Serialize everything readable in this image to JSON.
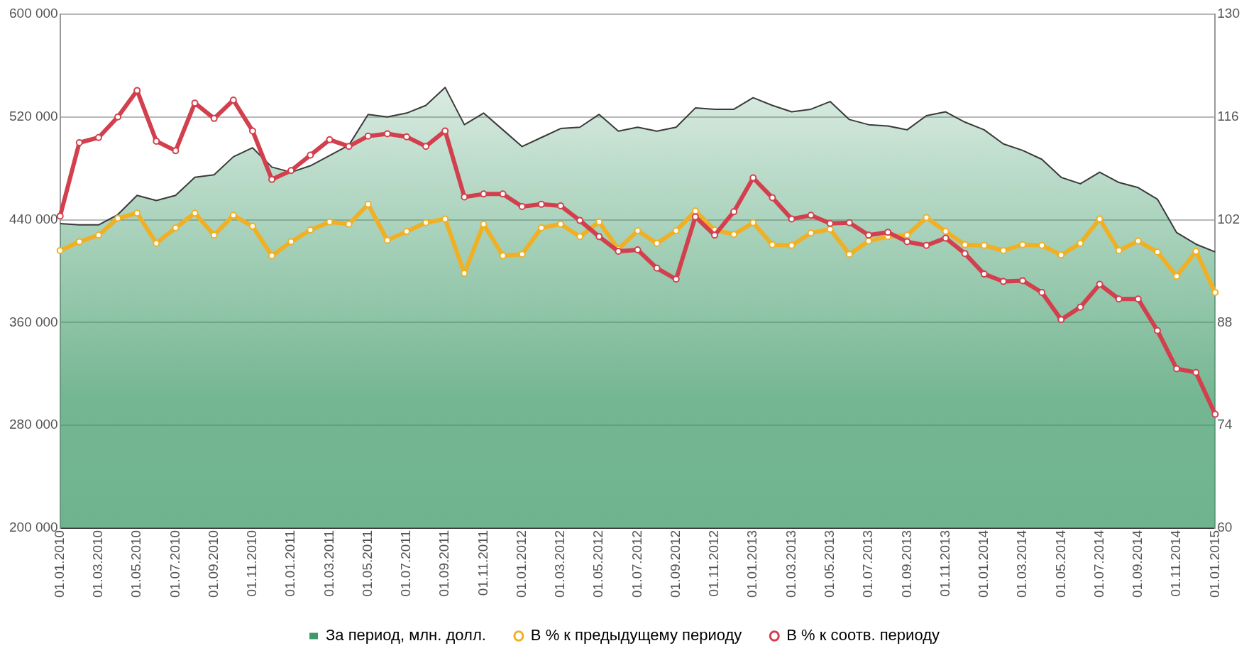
{
  "chart_data": {
    "type": "line",
    "categories": [
      "01.01.2010",
      null,
      "01.03.2010",
      null,
      "01.05.2010",
      null,
      "01.07.2010",
      null,
      "01.09.2010",
      null,
      "01.11.2010",
      null,
      "01.01.2011",
      null,
      "01.03.2011",
      null,
      "01.05.2011",
      null,
      "01.07.2011",
      null,
      "01.09.2011",
      null,
      "01.11.2011",
      null,
      "01.01.2012",
      null,
      "01.03.2012",
      null,
      "01.05.2012",
      null,
      "01.07.2012",
      null,
      "01.09.2012",
      null,
      "01.11.2012",
      null,
      "01.01.2013",
      null,
      "01.03.2013",
      null,
      "01.05.2013",
      null,
      "01.07.2013",
      null,
      "01.09.2013",
      null,
      "01.11.2013",
      null,
      "01.01.2014",
      null,
      "01.03.2014",
      null,
      "01.05.2014",
      null,
      "01.07.2014",
      null,
      "01.09.2014",
      null,
      "01.11.2014",
      null,
      "01.01.2015"
    ],
    "series": [
      {
        "name": "За период, млн. долл.",
        "type": "area",
        "color": "#3f9a68",
        "marker": "none",
        "values": [
          437000,
          436000,
          436000,
          444000,
          459000,
          455000,
          459000,
          473000,
          475000,
          489000,
          496000,
          481000,
          477000,
          482000,
          490000,
          498000,
          522000,
          520000,
          523000,
          529000,
          543000,
          514000,
          523000,
          510000,
          497000,
          504000,
          511000,
          512000,
          522000,
          509000,
          512000,
          509000,
          512000,
          527000,
          526000,
          526000,
          535000,
          529000,
          524000,
          526000,
          532000,
          518000,
          514000,
          513000,
          510000,
          521000,
          524000,
          516000,
          510000,
          499000,
          494000,
          487000,
          473000,
          468000,
          477000,
          469000,
          465000,
          456000,
          430000,
          421000,
          415000
        ]
      },
      {
        "name": "В % к предыдущему периоду",
        "axis": "y2",
        "color": "#f0b025",
        "marker": "circle",
        "values": [
          97.8,
          99.0,
          99.9,
          102.2,
          102.9,
          98.8,
          100.9,
          102.9,
          99.9,
          102.6,
          101.1,
          97.1,
          99.0,
          100.6,
          101.7,
          101.4,
          104.1,
          99.2,
          100.4,
          101.6,
          102.1,
          94.7,
          101.4,
          97.1,
          97.3,
          100.9,
          101.4,
          99.7,
          101.7,
          98.0,
          100.5,
          98.8,
          100.5,
          103.2,
          100.6,
          100.0,
          101.6,
          98.6,
          98.5,
          100.2,
          100.7,
          97.3,
          99.1,
          99.7,
          99.9,
          102.3,
          100.4,
          98.6,
          98.5,
          97.8,
          98.6,
          98.5,
          97.2,
          98.8,
          102.1,
          97.8,
          99.1,
          97.6,
          94.3,
          97.7,
          92.1
        ]
      },
      {
        "name": "В % к соотв. периоду",
        "axis": "y2",
        "color": "#d2404e",
        "marker": "circle",
        "values": [
          102.5,
          112.5,
          113.2,
          116.0,
          119.6,
          112.7,
          111.4,
          117.9,
          115.8,
          118.3,
          114.1,
          107.5,
          108.7,
          110.8,
          112.9,
          112.0,
          113.4,
          113.7,
          113.3,
          112.0,
          114.1,
          105.1,
          105.5,
          105.5,
          103.8,
          104.1,
          103.9,
          101.9,
          99.7,
          97.7,
          97.9,
          95.4,
          93.9,
          102.4,
          99.9,
          103.1,
          107.7,
          105.0,
          102.1,
          102.6,
          101.5,
          101.6,
          99.9,
          100.3,
          99.0,
          98.5,
          99.5,
          97.4,
          94.6,
          93.6,
          93.7,
          92.1,
          88.4,
          90.1,
          93.2,
          91.2,
          91.2,
          86.9,
          81.7,
          81.2,
          75.5
        ]
      }
    ],
    "ylim": [
      200000,
      600000
    ],
    "yticks": [
      {
        "value": 200000,
        "label": "200 000"
      },
      {
        "value": 280000,
        "label": "280 000"
      },
      {
        "value": 360000,
        "label": "360 000"
      },
      {
        "value": 440000,
        "label": "440 000"
      },
      {
        "value": 520000,
        "label": "520 000"
      },
      {
        "value": 600000,
        "label": "600 000"
      }
    ],
    "y2lim": [
      60,
      130
    ],
    "y2ticks": [
      60,
      74,
      88,
      102,
      116,
      130
    ],
    "grid": "y",
    "legend": "bottom"
  }
}
